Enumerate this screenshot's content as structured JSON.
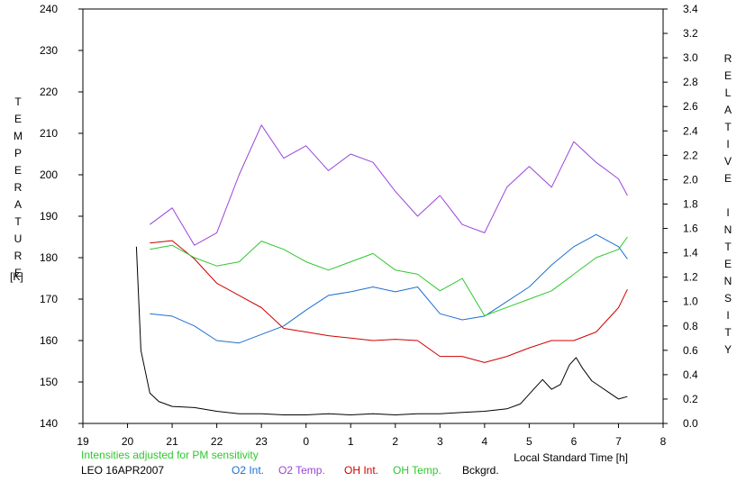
{
  "chart_data": {
    "type": "line",
    "x_axis": {
      "label": "Local Standard Time [h]",
      "ticks": [
        "19",
        "20",
        "21",
        "22",
        "23",
        "0",
        "1",
        "2",
        "3",
        "4",
        "5",
        "6",
        "7",
        "8"
      ],
      "range_hours": [
        19,
        32
      ]
    },
    "y_left": {
      "label": "TEMPERATURE",
      "unit_label": "[K]",
      "range": [
        140,
        240
      ],
      "ticks": [
        "140",
        "150",
        "160",
        "170",
        "180",
        "190",
        "200",
        "210",
        "220",
        "230",
        "240"
      ]
    },
    "y_right": {
      "label": "RELATIVE INTENSITY",
      "range": [
        0.0,
        3.4
      ],
      "ticks": [
        "0.0",
        "0.2",
        "0.4",
        "0.6",
        "0.8",
        "1.0",
        "1.2",
        "1.4",
        "1.6",
        "1.8",
        "2.0",
        "2.2",
        "2.4",
        "2.6",
        "2.8",
        "3.0",
        "3.2",
        "3.4"
      ]
    },
    "note": "Intensities adjusted for PM sensitivity",
    "station": "LEO 16APR2007",
    "grid": false,
    "legend_position": "bottom",
    "series": [
      {
        "name": "O2 Int.",
        "axis": "right",
        "color": "#1f6fd0",
        "x": [
          20.5,
          21.0,
          21.5,
          22.0,
          22.5,
          23.0,
          23.5,
          0.0,
          0.5,
          1.0,
          1.5,
          2.0,
          2.5,
          3.0,
          3.5,
          4.0,
          4.5,
          5.0,
          5.5,
          6.0,
          6.5,
          7.0,
          7.2
        ],
        "y": [
          0.9,
          0.88,
          0.8,
          0.68,
          0.66,
          0.73,
          0.8,
          0.93,
          1.05,
          1.08,
          1.12,
          1.08,
          1.12,
          0.9,
          0.85,
          0.88,
          1.0,
          1.12,
          1.3,
          1.45,
          1.55,
          1.45,
          1.35
        ]
      },
      {
        "name": "O2 Temp.",
        "axis": "left",
        "color": "#9a44d8",
        "x": [
          20.5,
          21.0,
          21.5,
          22.0,
          22.5,
          23.0,
          23.5,
          0.0,
          0.5,
          1.0,
          1.5,
          2.0,
          2.5,
          3.0,
          3.5,
          4.0,
          4.5,
          5.0,
          5.5,
          6.0,
          6.5,
          7.0,
          7.2
        ],
        "y": [
          188,
          192,
          183,
          186,
          200,
          212,
          204,
          207,
          201,
          205,
          203,
          196,
          190,
          195,
          188,
          186,
          197,
          202,
          197,
          208,
          203,
          199,
          195
        ]
      },
      {
        "name": "OH Int.",
        "axis": "right",
        "color": "#d00000",
        "x": [
          20.5,
          21.0,
          21.5,
          22.0,
          22.5,
          23.0,
          23.5,
          0.0,
          0.5,
          1.0,
          1.5,
          2.0,
          2.5,
          3.0,
          3.5,
          4.0,
          4.5,
          5.0,
          5.5,
          6.0,
          6.5,
          7.0,
          7.2
        ],
        "y": [
          1.48,
          1.5,
          1.35,
          1.15,
          1.05,
          0.95,
          0.78,
          0.75,
          0.72,
          0.7,
          0.68,
          0.69,
          0.68,
          0.55,
          0.55,
          0.5,
          0.55,
          0.62,
          0.68,
          0.68,
          0.75,
          0.95,
          1.1
        ]
      },
      {
        "name": "OH Temp.",
        "axis": "left",
        "color": "#2ec82e",
        "x": [
          20.5,
          21.0,
          21.5,
          22.0,
          22.5,
          23.0,
          23.5,
          0.0,
          0.5,
          1.0,
          1.5,
          2.0,
          2.5,
          3.0,
          3.5,
          4.0,
          4.5,
          5.0,
          5.5,
          6.0,
          6.5,
          7.0,
          7.2
        ],
        "y": [
          182,
          183,
          180,
          178,
          179,
          184,
          182,
          179,
          177,
          179,
          181,
          177,
          176,
          172,
          175,
          166,
          168,
          170,
          172,
          176,
          180,
          182,
          185
        ]
      },
      {
        "name": "Bckgrd.",
        "axis": "right",
        "color": "#000000",
        "x": [
          20.2,
          20.3,
          20.5,
          20.7,
          21.0,
          21.5,
          22.0,
          22.5,
          23.0,
          23.5,
          0.0,
          0.5,
          1.0,
          1.5,
          2.0,
          2.5,
          3.0,
          3.5,
          4.0,
          4.5,
          4.8,
          5.1,
          5.3,
          5.5,
          5.7,
          5.9,
          6.05,
          6.2,
          6.4,
          6.6,
          6.8,
          7.0,
          7.2
        ],
        "y": [
          1.45,
          0.6,
          0.25,
          0.18,
          0.14,
          0.13,
          0.1,
          0.08,
          0.08,
          0.07,
          0.07,
          0.08,
          0.07,
          0.08,
          0.07,
          0.08,
          0.08,
          0.09,
          0.1,
          0.12,
          0.16,
          0.28,
          0.36,
          0.28,
          0.32,
          0.48,
          0.54,
          0.45,
          0.35,
          0.3,
          0.25,
          0.2,
          0.22
        ]
      }
    ]
  }
}
